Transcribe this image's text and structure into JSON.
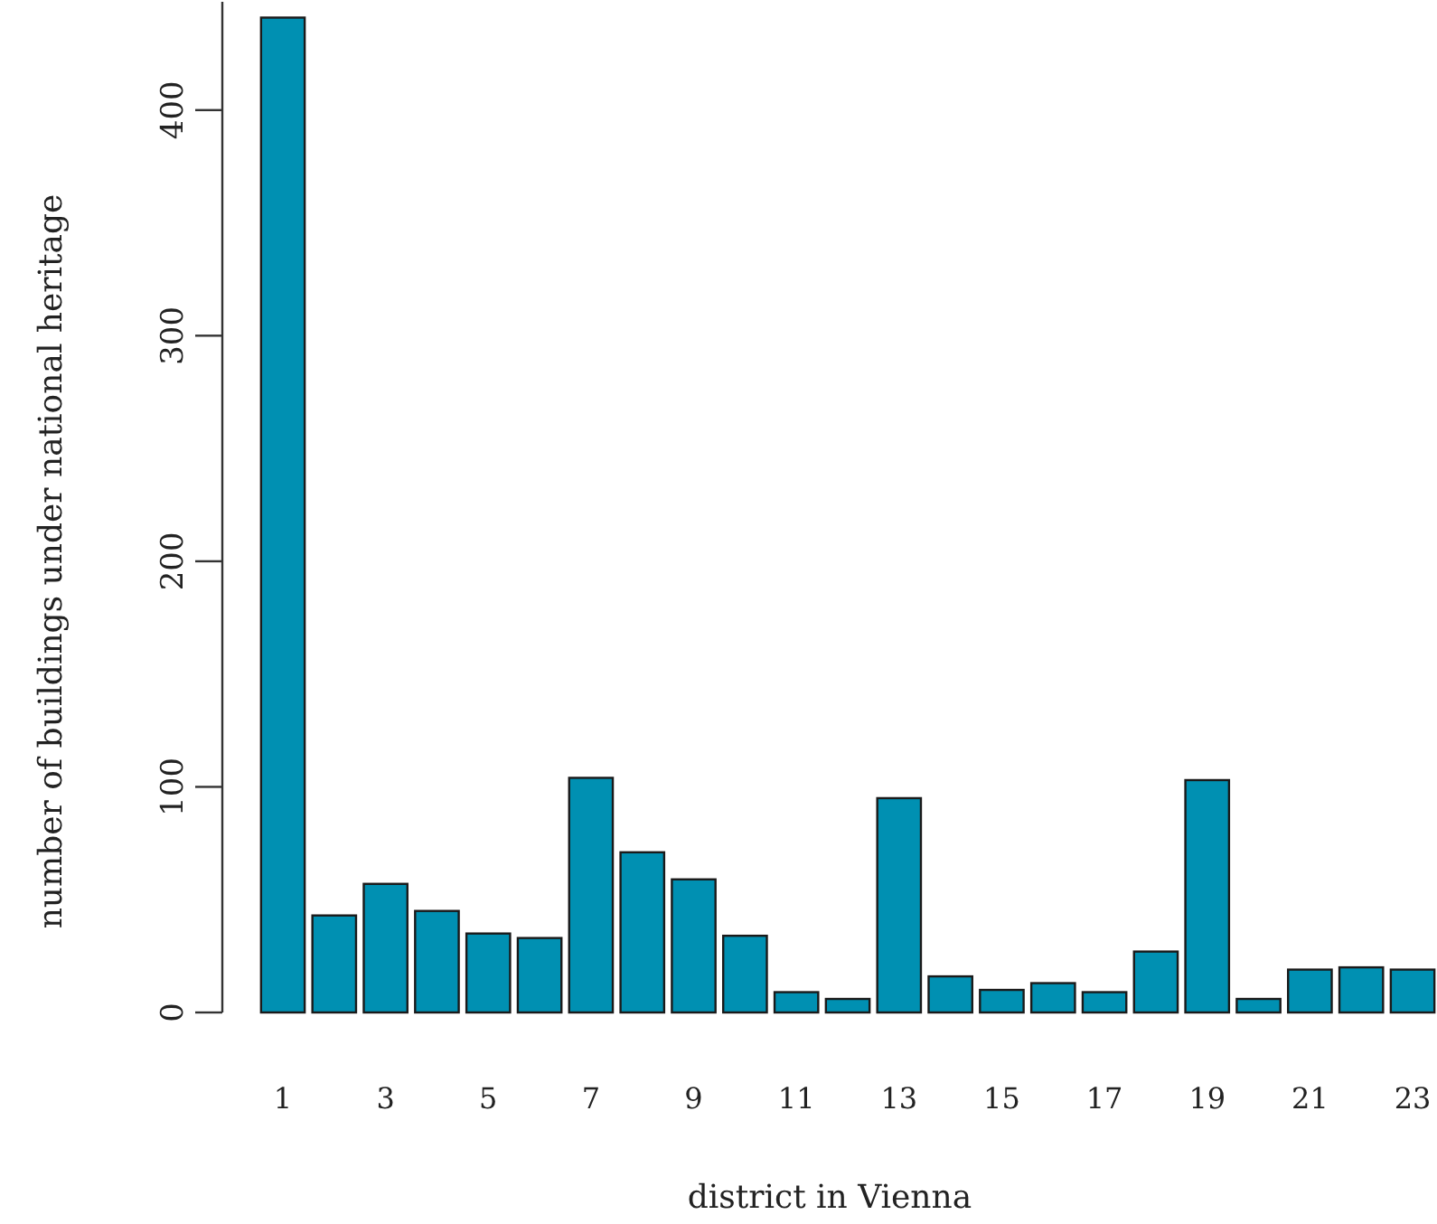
{
  "chart_data": {
    "type": "bar",
    "xlabel": "district in Vienna",
    "ylabel": "number of buildings under national heritage",
    "categories": [
      "1",
      null,
      "3",
      null,
      "5",
      null,
      "7",
      null,
      "9",
      null,
      "11",
      null,
      "13",
      null,
      "15",
      null,
      "17",
      null,
      "19",
      null,
      "21",
      null,
      "23"
    ],
    "values": [
      441,
      43,
      57,
      45,
      35,
      33,
      104,
      71,
      59,
      34,
      9,
      6,
      95,
      16,
      10,
      13,
      9,
      27,
      103,
      6,
      19,
      20,
      19
    ],
    "color": "#0090b2",
    "ylim": [
      0,
      448
    ],
    "yticks": [
      0,
      100,
      200,
      300,
      400
    ],
    "grid": false
  }
}
